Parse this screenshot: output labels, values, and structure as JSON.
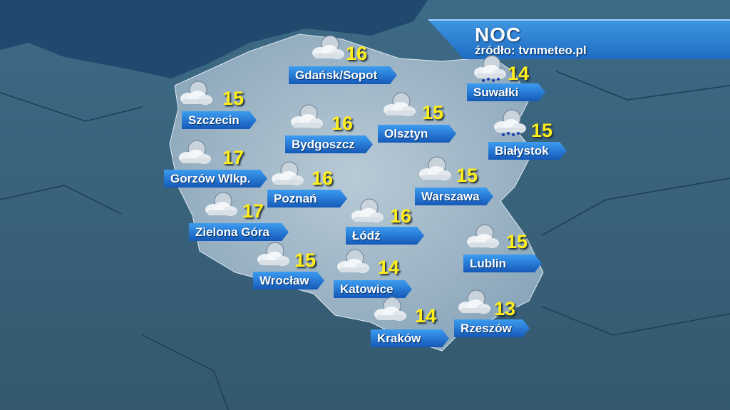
{
  "header": {
    "title": "NOC",
    "source": "źródło: tvnmeteo.pl"
  },
  "colors": {
    "label_bg": "#1e6cc4",
    "temperature": "#ffee1a",
    "header_bg": "#2a80d4"
  },
  "cities": [
    {
      "name": "Gdańsk/Sopot",
      "temp": "16",
      "icon": "moon-cloud-icon"
    },
    {
      "name": "Suwałki",
      "temp": "14",
      "icon": "moon-cloud-rain-icon"
    },
    {
      "name": "Szczecin",
      "temp": "15",
      "icon": "moon-cloud-icon"
    },
    {
      "name": "Bydgoszcz",
      "temp": "16",
      "icon": "moon-cloud-icon"
    },
    {
      "name": "Olsztyn",
      "temp": "15",
      "icon": "moon-cloud-icon"
    },
    {
      "name": "Białystok",
      "temp": "15",
      "icon": "moon-cloud-rain-icon"
    },
    {
      "name": "Gorzów Wlkp.",
      "temp": "17",
      "icon": "moon-cloud-icon"
    },
    {
      "name": "Poznań",
      "temp": "16",
      "icon": "moon-cloud-icon"
    },
    {
      "name": "Warszawa",
      "temp": "15",
      "icon": "moon-cloud-icon"
    },
    {
      "name": "Zielona Góra",
      "temp": "17",
      "icon": "moon-cloud-icon"
    },
    {
      "name": "Łódź",
      "temp": "16",
      "icon": "moon-cloud-icon"
    },
    {
      "name": "Lublin",
      "temp": "15",
      "icon": "moon-cloud-icon"
    },
    {
      "name": "Wrocław",
      "temp": "15",
      "icon": "moon-cloud-icon"
    },
    {
      "name": "Katowice",
      "temp": "14",
      "icon": "moon-cloud-icon"
    },
    {
      "name": "Kraków",
      "temp": "14",
      "icon": "moon-cloud-icon"
    },
    {
      "name": "Rzeszów",
      "temp": "13",
      "icon": "moon-cloud-icon"
    }
  ]
}
